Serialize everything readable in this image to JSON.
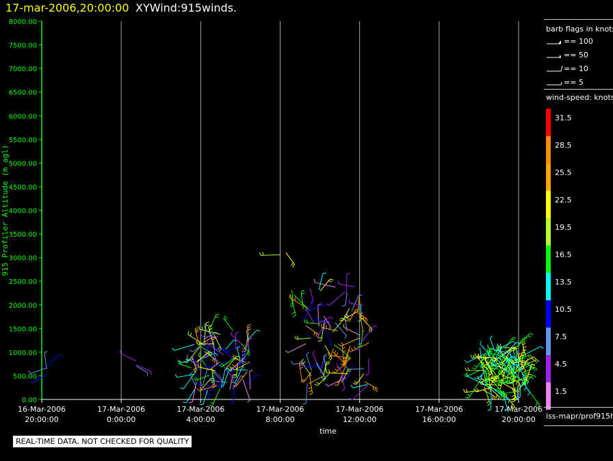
{
  "header": {
    "datetime": "17-mar-2006,20:00:00",
    "title": "XYWind:915winds."
  },
  "legend": {
    "barb_title": "barb flags in knots",
    "barb_flags": [
      {
        "label": "== 100",
        "kind": "pennant"
      },
      {
        "label": "== 50",
        "kind": "flag"
      },
      {
        "label": "== 10",
        "kind": "full"
      },
      {
        "label": "== 5",
        "kind": "half"
      }
    ],
    "speed_title": "wind-speed: knots",
    "colorscale": [
      {
        "label": "31.5",
        "color": "#ff0000"
      },
      {
        "label": "28.5",
        "color": "#ff8c00"
      },
      {
        "label": "25.5",
        "color": "#ffa500"
      },
      {
        "label": "22.5",
        "color": "#ffff00"
      },
      {
        "label": "19.5",
        "color": "#adff2f"
      },
      {
        "label": "16.5",
        "color": "#00ff00"
      },
      {
        "label": "13.5",
        "color": "#00ffff"
      },
      {
        "label": "10.5",
        "color": "#0000ff"
      },
      {
        "label": "7.5",
        "color": "#6495ed"
      },
      {
        "label": "4.5",
        "color": "#a020f0"
      },
      {
        "label": "1.5",
        "color": "#ee82ee"
      }
    ],
    "source": "iss-mapr/prof915h"
  },
  "notice": "REAL-TIME DATA, NOT CHECKED FOR QUALITY",
  "chart_data": {
    "type": "scatter",
    "title": "",
    "xlabel": "time",
    "ylabel": "915 Profiler Altitude (m agl)",
    "axis_color": "#00ff00",
    "ylim": [
      0,
      8000
    ],
    "xlim_hours": [
      0,
      24
    ],
    "y_ticks": [
      "0.00",
      "500.00",
      "1000.00",
      "1500.00",
      "2000.00",
      "2500.00",
      "3000.00",
      "3500.00",
      "4000.00",
      "4500.00",
      "5000.00",
      "5500.00",
      "6000.00",
      "6500.00",
      "7000.00",
      "7500.00",
      "8000.00"
    ],
    "x_ticks": [
      {
        "date": "16-Mar-2006",
        "time": "20:00:00"
      },
      {
        "date": "17-Mar-2006",
        "time": "0:00:00"
      },
      {
        "date": "17-Mar-2006",
        "time": "4:00:00"
      },
      {
        "date": "17-Mar-2006",
        "time": "8:00:00"
      },
      {
        "date": "17-Mar-2006",
        "time": "12:00:00"
      },
      {
        "date": "17-Mar-2006",
        "time": "16:00:00"
      },
      {
        "date": "17-Mar-2006",
        "time": "20:00:00"
      }
    ],
    "grid": true,
    "wind_clusters": [
      {
        "time": "16-Mar-2006 20:15",
        "alt_min": 500,
        "alt_max": 750,
        "count": 4,
        "speed_range": [
          7,
          12
        ]
      },
      {
        "time": "17-Mar-2006 00:45",
        "alt_min": 700,
        "alt_max": 820,
        "count": 3,
        "speed_range": [
          4,
          8
        ]
      },
      {
        "time": "17-Mar-2006 03:30–06:30",
        "alt_min": 200,
        "alt_max": 1500,
        "count": 90,
        "speed_range": [
          2,
          28
        ]
      },
      {
        "time": "17-Mar-2006 08:00–08:30",
        "alt_min": 3050,
        "alt_max": 3120,
        "count": 2,
        "speed_range": [
          18,
          22
        ]
      },
      {
        "time": "17-Mar-2006 08:30–09:00",
        "alt_min": 2150,
        "alt_max": 2400,
        "count": 3,
        "speed_range": [
          15,
          20
        ]
      },
      {
        "time": "17-Mar-2006 09:00–12:30",
        "alt_min": 300,
        "alt_max": 2400,
        "count": 80,
        "speed_range": [
          2,
          30
        ]
      },
      {
        "time": "17-Mar-2006 18:00–20:30",
        "alt_min": 150,
        "alt_max": 1100,
        "count": 130,
        "speed_range": [
          12,
          24
        ]
      }
    ]
  }
}
